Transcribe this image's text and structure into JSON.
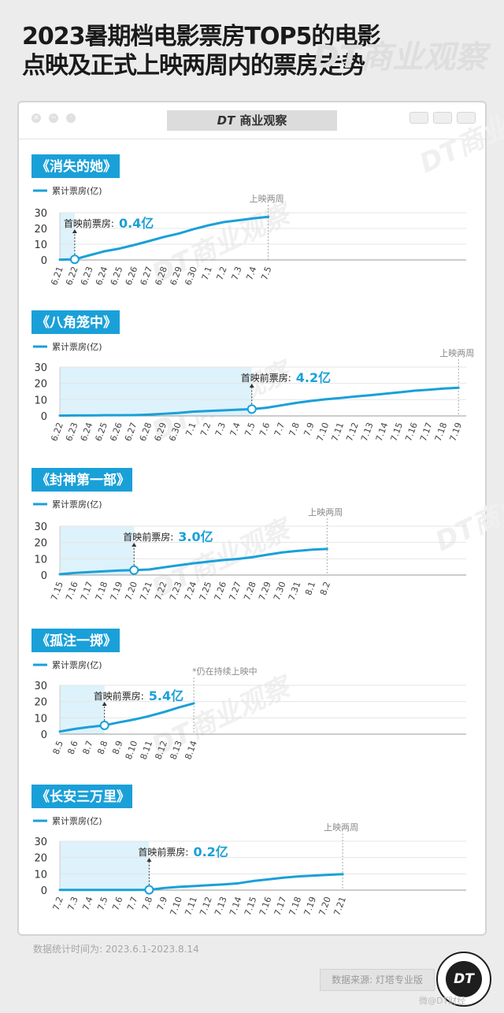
{
  "title": "2023暑期档电影票房TOP5的电影点映及正式上映两周内的票房走势",
  "watermark": "DT商业观察",
  "window": {
    "title_brand": "DT",
    "title_text": "商业观察"
  },
  "colors": {
    "line": "#1aa0d8",
    "shade": "#def2fb",
    "tag_bg": "#1aa0d8"
  },
  "footer_note": "数据统计时间为: 2023.6.1-2023.8.14",
  "source": "数据来源: 灯塔专业版",
  "logo": "DT",
  "weibo": "微@DT财经",
  "chart_data": [
    {
      "type": "line",
      "title": "《消失的她》",
      "legend": "累计票房(亿)",
      "ylim": [
        0,
        30
      ],
      "yticks": [
        0,
        10,
        20,
        30
      ],
      "categories": [
        "6.21",
        "6.22",
        "6.23",
        "6.24",
        "6.25",
        "6.26",
        "6.27",
        "6.28",
        "6.29",
        "6.30",
        "7.1",
        "7.2",
        "7.3",
        "7.4",
        "7.5"
      ],
      "values": [
        0.2,
        0.4,
        3.0,
        5.5,
        7.2,
        9.5,
        12.0,
        14.6,
        16.8,
        19.6,
        22.0,
        24.0,
        25.2,
        26.4,
        27.4
      ],
      "premiere_index": 1,
      "premiere_label": "首映前票房:",
      "premiere_value": "0.4亿",
      "end_label": "上映两周"
    },
    {
      "type": "line",
      "title": "《八角笼中》",
      "legend": "累计票房(亿)",
      "ylim": [
        0,
        30
      ],
      "yticks": [
        0,
        10,
        20,
        30
      ],
      "categories": [
        "6.22",
        "6.23",
        "6.24",
        "6.25",
        "6.26",
        "6.27",
        "6.28",
        "6.29",
        "6.30",
        "7.1",
        "7.2",
        "7.3",
        "7.4",
        "7.5",
        "7.6",
        "7.7",
        "7.8",
        "7.9",
        "7.10",
        "7.11",
        "7.12",
        "7.13",
        "7.14",
        "7.15",
        "7.16",
        "7.17",
        "7.18",
        "7.19"
      ],
      "values": [
        0.2,
        0.3,
        0.3,
        0.4,
        0.4,
        0.5,
        0.8,
        1.3,
        1.8,
        2.6,
        3.0,
        3.4,
        3.8,
        4.2,
        5.0,
        6.5,
        8.0,
        9.2,
        10.2,
        11.0,
        11.9,
        12.7,
        13.6,
        14.5,
        15.5,
        16.1,
        16.8,
        17.3
      ],
      "premiere_index": 13,
      "premiere_label": "首映前票房:",
      "premiere_value": "4.2亿",
      "end_label": "上映两周"
    },
    {
      "type": "line",
      "title": "《封神第一部》",
      "legend": "累计票房(亿)",
      "ylim": [
        0,
        30
      ],
      "yticks": [
        0,
        10,
        20,
        30
      ],
      "categories": [
        "7.15",
        "7.16",
        "7.17",
        "7.18",
        "7.19",
        "7.20",
        "7.21",
        "7.22",
        "7.23",
        "7.24",
        "7.25",
        "7.26",
        "7.27",
        "7.28",
        "7.29",
        "7.30",
        "7.31",
        "8.1",
        "8.2"
      ],
      "values": [
        0.5,
        1.3,
        1.8,
        2.3,
        2.8,
        3.0,
        3.4,
        4.7,
        6.0,
        7.2,
        8.2,
        9.2,
        9.9,
        11.0,
        12.5,
        13.9,
        14.8,
        15.6,
        16.0
      ],
      "premiere_index": 5,
      "premiere_label": "首映前票房:",
      "premiere_value": "3.0亿",
      "end_label": "上映两周"
    },
    {
      "type": "line",
      "title": "《孤注一掷》",
      "legend": "累计票房(亿)",
      "ylim": [
        0,
        30
      ],
      "yticks": [
        0,
        10,
        20,
        30
      ],
      "categories": [
        "8.5",
        "8.6",
        "8.7",
        "8.8",
        "8.9",
        "8.10",
        "8.11",
        "8.12",
        "8.13",
        "8.14"
      ],
      "values": [
        1.6,
        3.2,
        4.4,
        5.4,
        7.3,
        9.0,
        11.1,
        13.6,
        16.4,
        18.9
      ],
      "premiere_index": 3,
      "premiere_label": "首映前票房:",
      "premiere_value": "5.4亿",
      "end_label": "*仍在持续上映中",
      "category_count_total": 19
    },
    {
      "type": "line",
      "title": "《长安三万里》",
      "legend": "累计票房(亿)",
      "ylim": [
        0,
        30
      ],
      "yticks": [
        0,
        10,
        20,
        30
      ],
      "categories": [
        "7.2",
        "7.3",
        "7.4",
        "7.5",
        "7.6",
        "7.7",
        "7.8",
        "7.9",
        "7.10",
        "7.11",
        "7.12",
        "7.13",
        "7.14",
        "7.15",
        "7.16",
        "7.17",
        "7.18",
        "7.19",
        "7.20",
        "7.21"
      ],
      "values": [
        0.1,
        0.1,
        0.1,
        0.1,
        0.1,
        0.1,
        0.2,
        1.3,
        2.0,
        2.5,
        3.0,
        3.5,
        4.2,
        5.6,
        6.6,
        7.6,
        8.4,
        8.9,
        9.4,
        9.8
      ],
      "premiere_index": 6,
      "premiere_label": "首映前票房:",
      "premiere_value": "0.2亿",
      "end_label": "上映两周"
    }
  ]
}
